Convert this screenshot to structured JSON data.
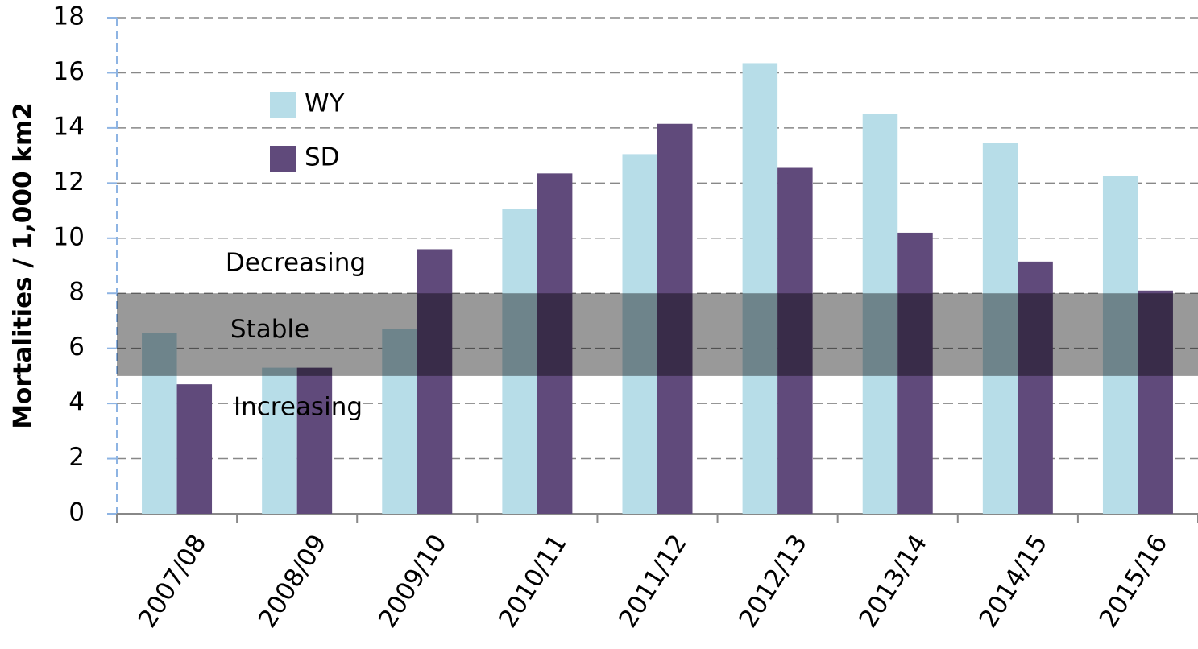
{
  "chart_data": {
    "type": "bar",
    "y_label": "Mortalities / 1,000 km2",
    "categories": [
      "2007/08",
      "2008/09",
      "2009/10",
      "2010/11",
      "2011/12",
      "2012/13",
      "2013/14",
      "2014/15",
      "2015/16"
    ],
    "series": [
      {
        "name": "WY",
        "color": "#b7dde8",
        "values": [
          6.55,
          5.3,
          6.7,
          11.05,
          13.05,
          16.35,
          14.5,
          13.45,
          12.25
        ]
      },
      {
        "name": "SD",
        "color": "#604a7b",
        "values": [
          4.7,
          5.3,
          9.6,
          12.35,
          14.15,
          12.55,
          10.2,
          9.15,
          8.1
        ]
      }
    ],
    "ylim": [
      0,
      18
    ],
    "yticks": [
      0,
      2,
      4,
      6,
      8,
      10,
      12,
      14,
      16,
      18
    ],
    "grid": true,
    "stable_band": {
      "label": "Stable",
      "from": 5,
      "to": 8
    },
    "annotations": {
      "above": "Decreasing",
      "below": "Increasing"
    },
    "legend": "upper-left"
  }
}
